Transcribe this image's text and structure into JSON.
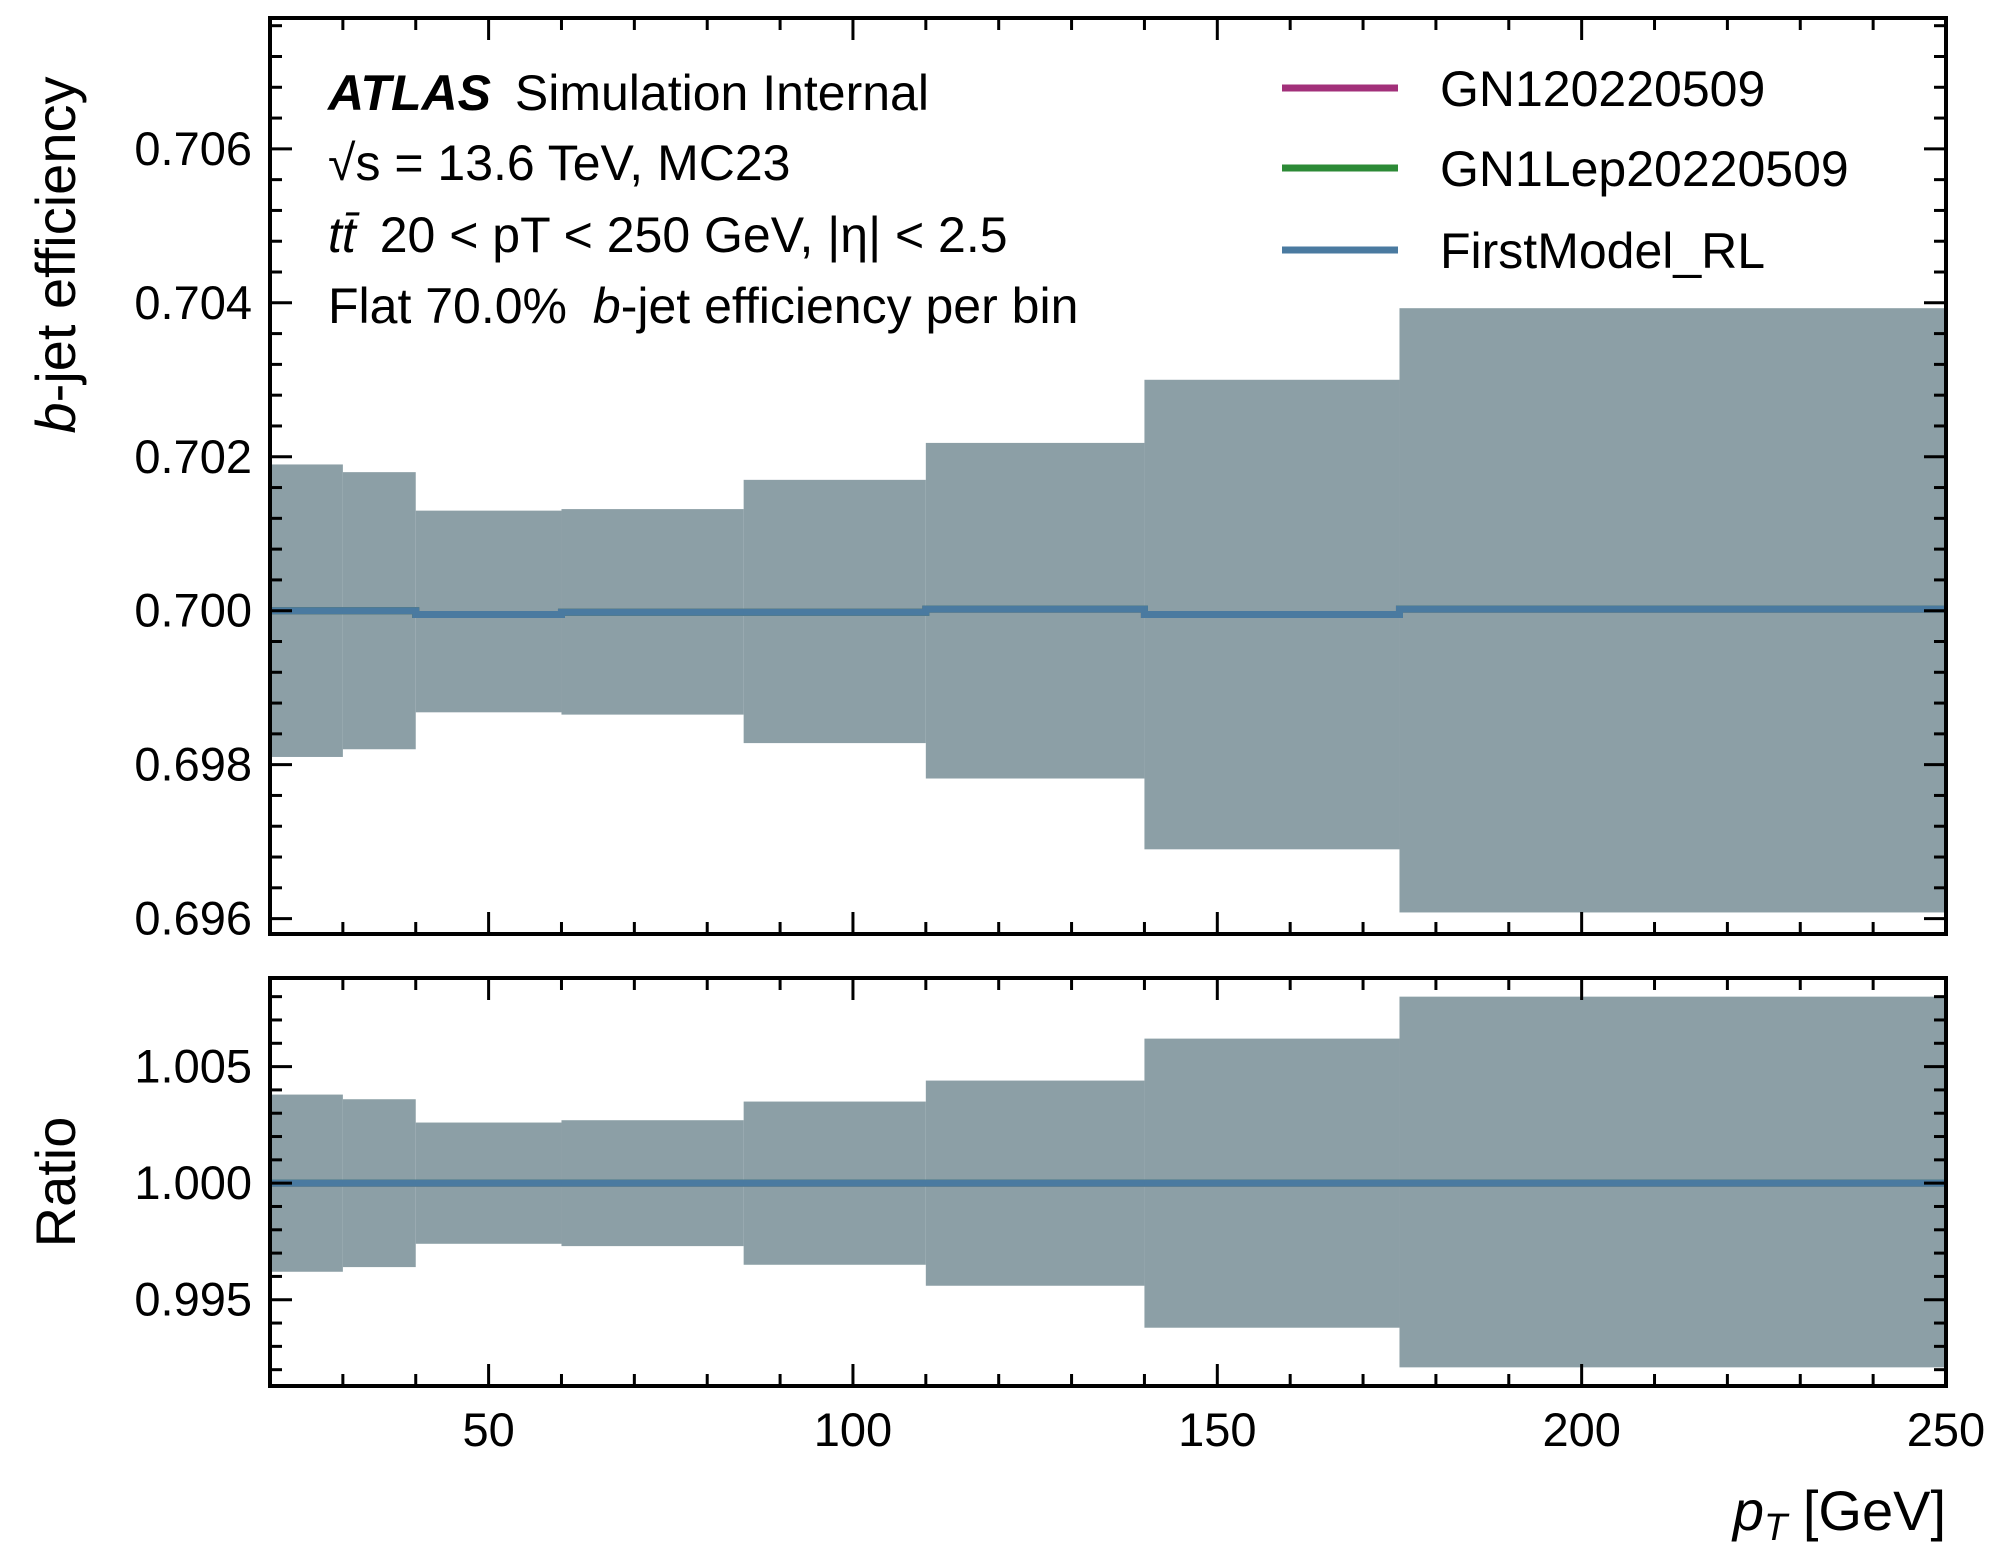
{
  "figure": {
    "info_lines": {
      "experiment": "ATLAS",
      "status": "Simulation Internal",
      "energy": "√s = 13.6 TeV, MC23",
      "selection_sample": "tt̄",
      "selection_rest": "20 < pT < 250 GeV, |η| < 2.5",
      "working_point_prefix": "Flat 70.0%",
      "working_point_italic": "b",
      "working_point_suffix": "-jet efficiency per bin"
    },
    "colors": {
      "band_fill": "#8c9fa6",
      "GN120220509": "#a2307a",
      "GN1Lep20220509": "#2c8a36",
      "FirstModel_RL": "#4a7aa0"
    }
  },
  "chart_data": [
    {
      "panel": "main",
      "type": "line",
      "style": "step",
      "xlabel": "p_T [GeV]",
      "xlabel_italic": "p",
      "xlabel_sub": "T",
      "xlabel_rest": " [GeV]",
      "ylabel": "b-jet efficiency",
      "ylabel_italic": "b",
      "ylabel_rest": "-jet efficiency",
      "xlim": [
        20,
        250
      ],
      "ylim": [
        0.6958,
        0.7077
      ],
      "x_ticks": [
        50,
        100,
        150,
        200,
        250
      ],
      "y_ticks": [
        0.696,
        0.698,
        0.7,
        0.702,
        0.704,
        0.706
      ],
      "y_tick_labels": [
        "0.696",
        "0.698",
        "0.700",
        "0.702",
        "0.704",
        "0.706"
      ],
      "bin_edges": [
        20,
        30,
        40,
        60,
        85,
        110,
        140,
        175,
        250
      ],
      "legend": {
        "position": "top-right",
        "entries": [
          "GN120220509",
          "GN1Lep20220509",
          "FirstModel_RL"
        ]
      },
      "series": [
        {
          "name": "GN120220509",
          "values": [
            0.7,
            0.7,
            0.69995,
            0.69998,
            0.69998,
            0.70002,
            0.69995,
            0.70002
          ]
        },
        {
          "name": "GN1Lep20220509",
          "values": [
            0.7,
            0.7,
            0.69995,
            0.69998,
            0.69998,
            0.70002,
            0.69995,
            0.70002
          ]
        },
        {
          "name": "FirstModel_RL",
          "values": [
            0.7,
            0.7,
            0.69995,
            0.69998,
            0.69998,
            0.70002,
            0.69995,
            0.70002
          ]
        }
      ],
      "uncertainty_band": {
        "upper": [
          0.7019,
          0.7018,
          0.7013,
          0.70132,
          0.7017,
          0.70218,
          0.703,
          0.70393
        ],
        "lower": [
          0.6981,
          0.6982,
          0.69868,
          0.69865,
          0.69828,
          0.69782,
          0.6969,
          0.69608
        ]
      }
    },
    {
      "panel": "ratio",
      "type": "line",
      "style": "step",
      "ylabel": "Ratio",
      "xlim": [
        20,
        250
      ],
      "ylim": [
        0.9913,
        1.0088
      ],
      "x_ticks": [
        50,
        100,
        150,
        200,
        250
      ],
      "x_tick_labels": [
        "50",
        "100",
        "150",
        "200",
        "250"
      ],
      "y_ticks": [
        0.995,
        1.0,
        1.005
      ],
      "y_tick_labels": [
        "0.995",
        "1.000",
        "1.005"
      ],
      "bin_edges": [
        20,
        30,
        40,
        60,
        85,
        110,
        140,
        175,
        250
      ],
      "series": [
        {
          "name": "GN120220509",
          "values": [
            1,
            1,
            1,
            1,
            1,
            1,
            1,
            1
          ]
        },
        {
          "name": "GN1Lep20220509",
          "values": [
            1,
            1,
            1,
            1,
            1,
            1,
            1,
            1
          ]
        },
        {
          "name": "FirstModel_RL",
          "values": [
            1,
            1,
            1,
            1,
            1,
            1,
            1,
            1
          ]
        }
      ],
      "uncertainty_band": {
        "upper": [
          1.0038,
          1.0036,
          1.0026,
          1.0027,
          1.0035,
          1.0044,
          1.0062,
          1.008
        ],
        "lower": [
          0.9962,
          0.9964,
          0.9974,
          0.9973,
          0.9965,
          0.9956,
          0.9938,
          0.9921
        ]
      }
    }
  ]
}
